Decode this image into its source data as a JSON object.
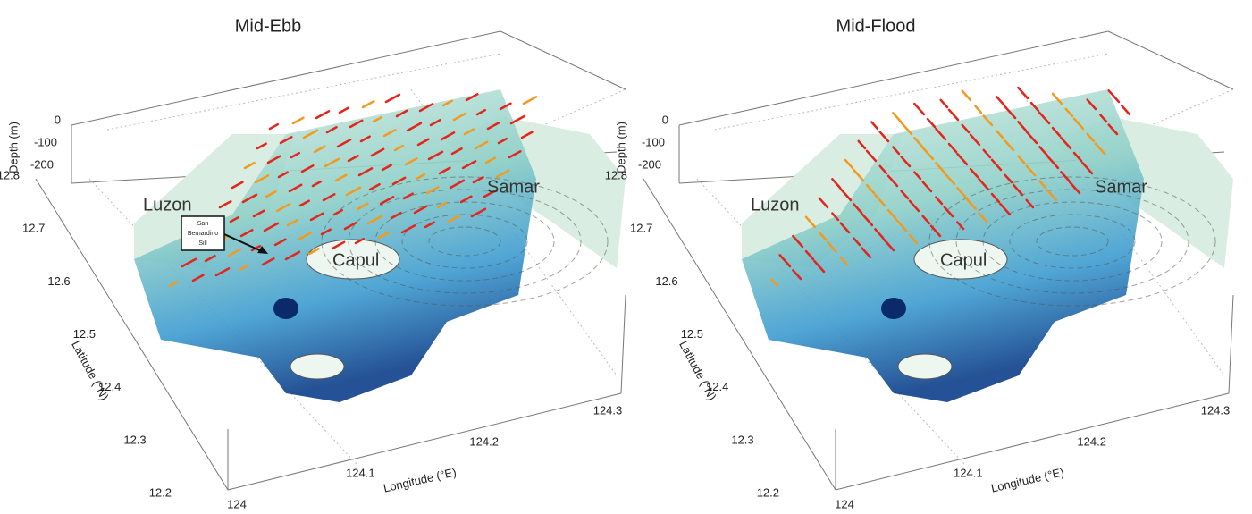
{
  "panels": [
    {
      "title": "Mid-Ebb",
      "places": {
        "luzon": "Luzon",
        "samar": "Samar",
        "capul": "Capul"
      },
      "sill_label": [
        "San",
        "Bernardino",
        "Sill"
      ],
      "axes": {
        "depth_label": "Depth (m)",
        "depth_ticks": [
          0,
          -100,
          -200
        ],
        "lat_label": "Latitude (°N)",
        "lat_ticks": [
          12.8,
          12.7,
          12.6,
          12.5,
          12.4,
          12.3,
          12.2
        ],
        "lon_label": "Longitude (°E)",
        "lon_ticks": [
          124,
          124.1,
          124.2,
          124.3
        ]
      }
    },
    {
      "title": "Mid-Flood",
      "places": {
        "luzon": "Luzon",
        "samar": "Samar",
        "capul": "Capul"
      },
      "axes": {
        "depth_label": "Depth (m)",
        "depth_ticks": [
          0,
          -100,
          -200
        ],
        "lat_label": "Latitude (°N)",
        "lat_ticks": [
          12.8,
          12.7,
          12.6,
          12.5,
          12.4,
          12.3,
          12.2
        ],
        "lon_label": "Longitude (°E)",
        "lon_ticks": [
          124,
          124.1,
          124.2,
          124.3
        ]
      }
    }
  ]
}
